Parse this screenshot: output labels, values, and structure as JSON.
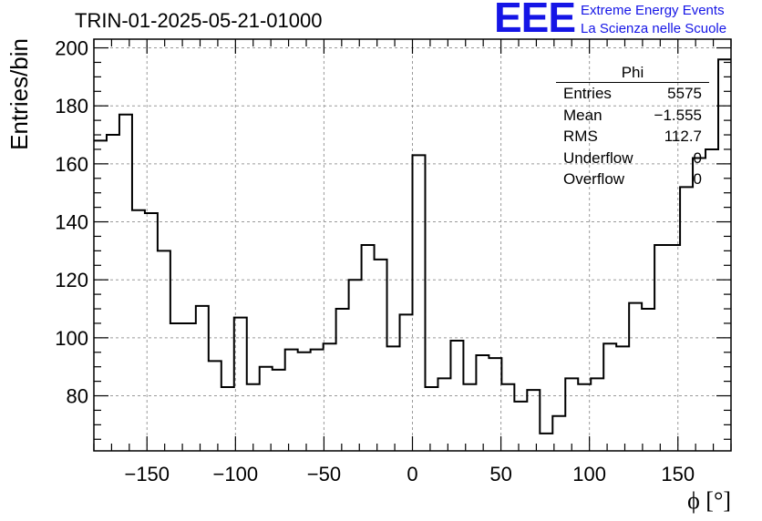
{
  "chart_data": {
    "type": "histogram",
    "title": "TRIN-01-2025-05-21-01000",
    "xlabel": "ϕ [°]",
    "ylabel": "Entries/bin",
    "xlim": [
      -180,
      180
    ],
    "ylim": [
      61,
      203
    ],
    "grid": true,
    "bin_edges": [
      -180,
      -172.8,
      -165.6,
      -158.4,
      -151.2,
      -144,
      -136.8,
      -129.6,
      -122.4,
      -115.2,
      -108,
      -100.8,
      -93.6,
      -86.4,
      -79.2,
      -72,
      -64.8,
      -57.6,
      -50.4,
      -43.2,
      -36,
      -28.8,
      -21.6,
      -14.4,
      -7.2,
      0,
      7.2,
      14.4,
      21.6,
      28.8,
      36,
      43.2,
      50.4,
      57.6,
      64.8,
      72,
      79.2,
      86.4,
      93.6,
      100.8,
      108,
      115.2,
      122.4,
      129.6,
      136.8,
      144,
      151.2,
      158.4,
      165.6,
      172.8,
      180
    ],
    "values": [
      168,
      170,
      177,
      144,
      143,
      130,
      105,
      105,
      111,
      92,
      83,
      107,
      84,
      90,
      89,
      96,
      95,
      96,
      98,
      110,
      120,
      132,
      127,
      97,
      108,
      163,
      83,
      86,
      99,
      84,
      94,
      93,
      84,
      78,
      82,
      67,
      73,
      86,
      84,
      86,
      98,
      97,
      112,
      110,
      132,
      132,
      152,
      162,
      165,
      196
    ],
    "x_ticks": [
      -150,
      -100,
      -50,
      0,
      50,
      100,
      150
    ],
    "y_ticks": [
      80,
      100,
      120,
      140,
      160,
      180,
      200
    ]
  },
  "brand": {
    "logo": "EEE",
    "line1": "Extreme Energy Events",
    "line2": "La Scienza nelle Scuole"
  },
  "stats": {
    "name": "Phi",
    "rows": [
      {
        "key": "Entries",
        "value": "5575"
      },
      {
        "key": "Mean",
        "value": "−1.555"
      },
      {
        "key": "RMS",
        "value": "112.7"
      },
      {
        "key": "Underflow",
        "value": "0"
      },
      {
        "key": "Overflow",
        "value": "0"
      }
    ]
  }
}
